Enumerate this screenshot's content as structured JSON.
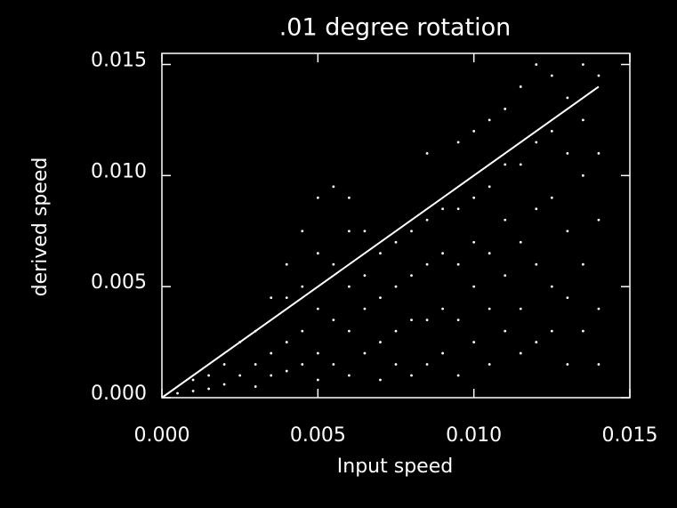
{
  "chart_data": {
    "type": "scatter",
    "title": ".01 degree rotation",
    "x_label": "Input speed",
    "y_label": "derived speed",
    "xlim": [
      0,
      0.015
    ],
    "ylim": [
      0,
      0.0155
    ],
    "xticks": [
      {
        "value": 0,
        "label": "0.000"
      },
      {
        "value": 0.005,
        "label": "0.005"
      },
      {
        "value": 0.01,
        "label": "0.010"
      },
      {
        "value": 0.015,
        "label": "0.015"
      }
    ],
    "yticks": [
      {
        "value": 0,
        "label": "0.000"
      },
      {
        "value": 0.005,
        "label": "0.005"
      },
      {
        "value": 0.01,
        "label": "0.010"
      },
      {
        "value": 0.015,
        "label": "0.015"
      }
    ],
    "background": "#000000",
    "axis_color": "#ffffff",
    "series": [
      {
        "type": "scatter",
        "color": "#ffffff",
        "x": [
          0.0005,
          0.001,
          0.001,
          0.0015,
          0.0015,
          0.002,
          0.002,
          0.0025,
          0.0025,
          0.003,
          0.003,
          0.003,
          0.0035,
          0.0035,
          0.0035,
          0.004,
          0.004,
          0.004,
          0.004,
          0.0045,
          0.0045,
          0.0045,
          0.0045,
          0.005,
          0.005,
          0.005,
          0.005,
          0.005,
          0.0055,
          0.0055,
          0.0055,
          0.0055,
          0.006,
          0.006,
          0.006,
          0.006,
          0.006,
          0.0065,
          0.0065,
          0.0065,
          0.0065,
          0.007,
          0.007,
          0.007,
          0.007,
          0.0075,
          0.0075,
          0.0075,
          0.0075,
          0.008,
          0.008,
          0.008,
          0.008,
          0.0085,
          0.0085,
          0.0085,
          0.0085,
          0.0085,
          0.009,
          0.009,
          0.009,
          0.009,
          0.0095,
          0.0095,
          0.0095,
          0.0095,
          0.0095,
          0.01,
          0.01,
          0.01,
          0.01,
          0.01,
          0.0105,
          0.0105,
          0.0105,
          0.0105,
          0.0105,
          0.011,
          0.011,
          0.011,
          0.011,
          0.011,
          0.0115,
          0.0115,
          0.0115,
          0.0115,
          0.0115,
          0.012,
          0.012,
          0.012,
          0.012,
          0.012,
          0.0125,
          0.0125,
          0.0125,
          0.0125,
          0.0125,
          0.013,
          0.013,
          0.013,
          0.013,
          0.013,
          0.0135,
          0.0135,
          0.0135,
          0.0135,
          0.0135,
          0.014,
          0.014,
          0.014,
          0.014,
          0.014
        ],
        "y": [
          0.0002,
          0.0003,
          0.0008,
          0.001,
          0.0004,
          0.0015,
          0.0006,
          0.0025,
          0.001,
          0.003,
          0.0015,
          0.0005,
          0.0045,
          0.002,
          0.001,
          0.006,
          0.0045,
          0.0025,
          0.0012,
          0.0075,
          0.005,
          0.003,
          0.0015,
          0.009,
          0.0065,
          0.004,
          0.002,
          0.0008,
          0.0095,
          0.006,
          0.0035,
          0.0015,
          0.009,
          0.0075,
          0.005,
          0.003,
          0.001,
          0.0075,
          0.0055,
          0.004,
          0.002,
          0.0065,
          0.0045,
          0.0025,
          0.0008,
          0.007,
          0.005,
          0.003,
          0.0015,
          0.0075,
          0.0055,
          0.0035,
          0.001,
          0.011,
          0.008,
          0.006,
          0.0035,
          0.0015,
          0.0085,
          0.0065,
          0.004,
          0.002,
          0.0115,
          0.0085,
          0.006,
          0.0035,
          0.001,
          0.012,
          0.009,
          0.007,
          0.005,
          0.0025,
          0.0125,
          0.0095,
          0.0065,
          0.004,
          0.0015,
          0.013,
          0.0105,
          0.008,
          0.0055,
          0.003,
          0.014,
          0.0105,
          0.007,
          0.004,
          0.002,
          0.015,
          0.0115,
          0.0085,
          0.006,
          0.0025,
          0.0145,
          0.012,
          0.009,
          0.005,
          0.003,
          0.0135,
          0.011,
          0.0075,
          0.0045,
          0.0015,
          0.015,
          0.0125,
          0.01,
          0.006,
          0.003,
          0.0145,
          0.011,
          0.008,
          0.004,
          0.0015
        ]
      },
      {
        "type": "line",
        "color": "#ffffff",
        "x": [
          0,
          0.014
        ],
        "y": [
          0,
          0.014
        ]
      }
    ]
  }
}
